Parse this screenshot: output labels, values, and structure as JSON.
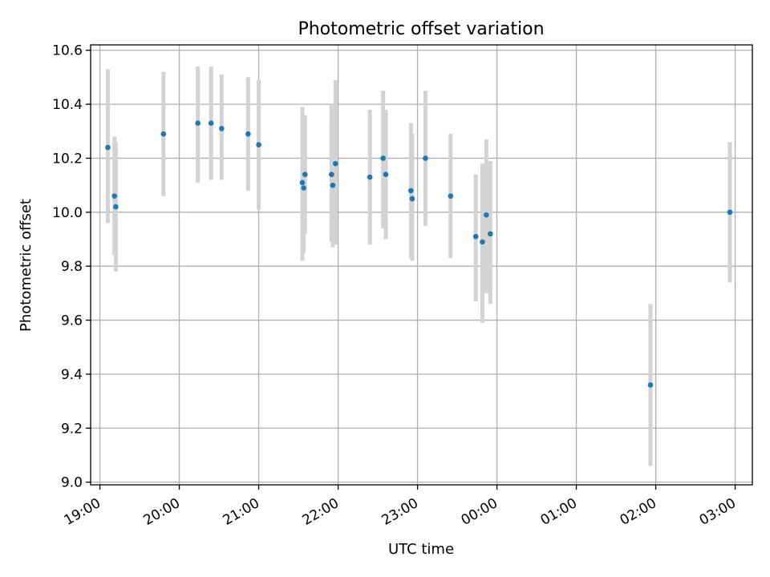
{
  "chart_data": {
    "type": "scatter",
    "title": "Photometric offset variation",
    "xlabel": "UTC time",
    "ylabel": "Photometric offset",
    "xlim": [
      "2000-01-01T18:53",
      "2000-01-02T03:13"
    ],
    "ylim": [
      8.99,
      10.62
    ],
    "x_ticks": [
      "2000-01-01T19:00",
      "2000-01-01T20:00",
      "2000-01-01T21:00",
      "2000-01-01T22:00",
      "2000-01-01T23:00",
      "2000-01-02T00:00",
      "2000-01-02T01:00",
      "2000-01-02T02:00",
      "2000-01-02T03:00"
    ],
    "x_tick_labels": [
      "19:00",
      "20:00",
      "21:00",
      "22:00",
      "23:00",
      "00:00",
      "01:00",
      "02:00",
      "03:00"
    ],
    "y_ticks": [
      9.0,
      9.2,
      9.4,
      9.6,
      9.8,
      10.0,
      10.2,
      10.4,
      10.6
    ],
    "y_tick_labels": [
      "9.0",
      "9.2",
      "9.4",
      "9.6",
      "9.8",
      "10.0",
      "10.2",
      "10.4",
      "10.6"
    ],
    "grid": true,
    "marker_color": "#1f77b4",
    "errorbar_color": "#d3d3d3",
    "points": [
      {
        "t": "2000-01-01T19:06",
        "y": 10.24,
        "lo": 9.96,
        "hi": 10.53
      },
      {
        "t": "2000-01-01T19:11",
        "y": 10.06,
        "lo": 9.84,
        "hi": 10.28
      },
      {
        "t": "2000-01-01T19:12",
        "y": 10.02,
        "lo": 9.78,
        "hi": 10.26
      },
      {
        "t": "2000-01-01T19:48",
        "y": 10.29,
        "lo": 10.06,
        "hi": 10.52
      },
      {
        "t": "2000-01-01T20:14",
        "y": 10.33,
        "lo": 10.11,
        "hi": 10.54
      },
      {
        "t": "2000-01-01T20:24",
        "y": 10.33,
        "lo": 10.12,
        "hi": 10.54
      },
      {
        "t": "2000-01-01T20:32",
        "y": 10.31,
        "lo": 10.12,
        "hi": 10.51
      },
      {
        "t": "2000-01-01T20:52",
        "y": 10.29,
        "lo": 10.08,
        "hi": 10.5
      },
      {
        "t": "2000-01-01T21:00",
        "y": 10.25,
        "lo": 10.01,
        "hi": 10.49
      },
      {
        "t": "2000-01-01T21:33",
        "y": 10.11,
        "lo": 9.82,
        "hi": 10.39
      },
      {
        "t": "2000-01-01T21:34",
        "y": 10.09,
        "lo": 9.85,
        "hi": 10.33
      },
      {
        "t": "2000-01-01T21:35",
        "y": 10.14,
        "lo": 9.92,
        "hi": 10.36
      },
      {
        "t": "2000-01-01T21:55",
        "y": 10.14,
        "lo": 9.89,
        "hi": 10.4
      },
      {
        "t": "2000-01-01T21:56",
        "y": 10.1,
        "lo": 9.87,
        "hi": 10.34
      },
      {
        "t": "2000-01-01T21:58",
        "y": 10.18,
        "lo": 9.88,
        "hi": 10.49
      },
      {
        "t": "2000-01-01T22:24",
        "y": 10.13,
        "lo": 9.88,
        "hi": 10.38
      },
      {
        "t": "2000-01-01T22:34",
        "y": 10.2,
        "lo": 9.94,
        "hi": 10.45
      },
      {
        "t": "2000-01-01T22:36",
        "y": 10.14,
        "lo": 9.9,
        "hi": 10.38
      },
      {
        "t": "2000-01-01T22:55",
        "y": 10.08,
        "lo": 9.83,
        "hi": 10.33
      },
      {
        "t": "2000-01-01T22:56",
        "y": 10.05,
        "lo": 9.82,
        "hi": 10.29
      },
      {
        "t": "2000-01-01T23:06",
        "y": 10.2,
        "lo": 9.95,
        "hi": 10.45
      },
      {
        "t": "2000-01-01T23:25",
        "y": 10.06,
        "lo": 9.83,
        "hi": 10.29
      },
      {
        "t": "2000-01-01T23:44",
        "y": 9.91,
        "lo": 9.67,
        "hi": 10.14
      },
      {
        "t": "2000-01-01T23:49",
        "y": 9.89,
        "lo": 9.59,
        "hi": 10.18
      },
      {
        "t": "2000-01-01T23:52",
        "y": 9.99,
        "lo": 9.7,
        "hi": 10.27
      },
      {
        "t": "2000-01-01T23:55",
        "y": 9.92,
        "lo": 9.66,
        "hi": 10.19
      },
      {
        "t": "2000-01-02T01:56",
        "y": 9.36,
        "lo": 9.06,
        "hi": 9.66
      },
      {
        "t": "2000-01-02T02:56",
        "y": 10.0,
        "lo": 9.74,
        "hi": 10.26
      }
    ]
  }
}
